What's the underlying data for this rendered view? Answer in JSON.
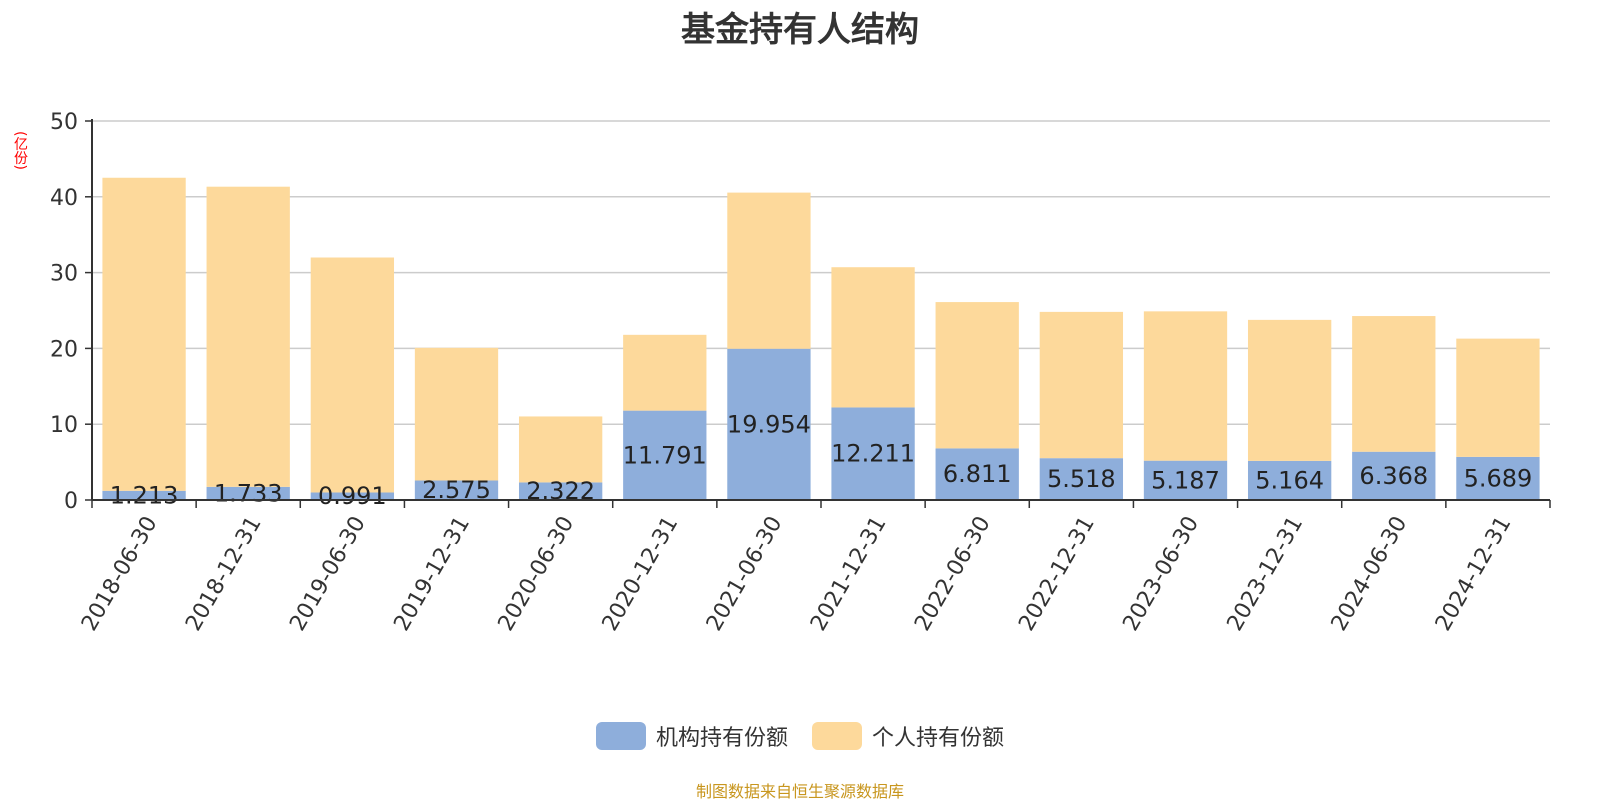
{
  "chart_data": {
    "type": "bar",
    "stacked": true,
    "title": "基金持有人结构",
    "unit": "(亿份)",
    "categories": [
      "2018-06-30",
      "2018-12-31",
      "2019-06-30",
      "2019-12-31",
      "2020-06-30",
      "2020-12-31",
      "2021-06-30",
      "2021-12-31",
      "2022-06-30",
      "2022-12-31",
      "2023-06-30",
      "2023-12-31",
      "2024-06-30",
      "2024-12-31"
    ],
    "series": [
      {
        "name": "机构持有份额",
        "color": "#8eaedb",
        "values": [
          1.213,
          1.733,
          0.991,
          2.575,
          2.322,
          11.791,
          19.954,
          12.211,
          6.811,
          5.518,
          5.187,
          5.164,
          6.368,
          5.689
        ],
        "labels": [
          "1.213",
          "1.733",
          "0.991",
          "2.575",
          "2.322",
          "11.791",
          "19.954",
          "12.211",
          "6.811",
          "5.518",
          "5.187",
          "5.164",
          "6.368",
          "5.689"
        ]
      },
      {
        "name": "个人持有份额",
        "color": "#fdd99b",
        "values": [
          41.3,
          39.6,
          31.0,
          17.5,
          8.7,
          10.0,
          20.6,
          18.5,
          19.3,
          19.3,
          19.7,
          18.6,
          17.9,
          15.6
        ]
      }
    ],
    "ylim": [
      0,
      50
    ],
    "yticks": [
      0,
      10,
      20,
      30,
      40,
      50
    ],
    "grid": true,
    "legend_position": "bottom-center"
  },
  "footer": {
    "source": "制图数据来自恒生聚源数据库"
  }
}
